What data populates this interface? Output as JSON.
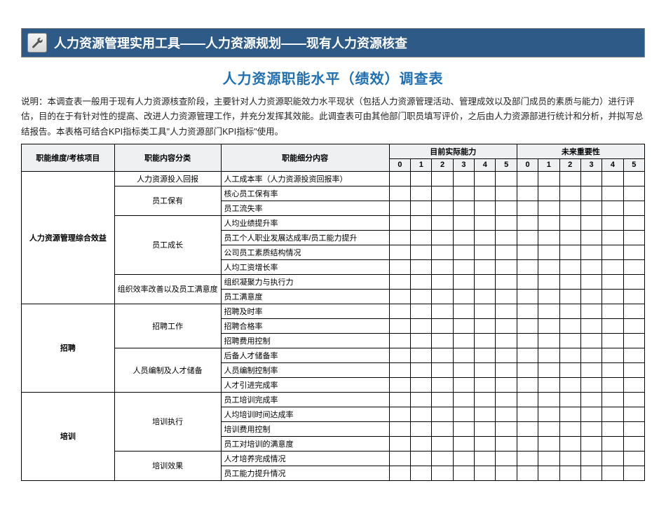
{
  "header": {
    "title": "人力资源管理实用工具——人力资源规划——现有人力资源核查",
    "bar_bg": "#2e5a87",
    "icon_name": "wrench-icon"
  },
  "sub_title": "人力资源职能水平（绩效）调查表",
  "sub_title_color": "#1f6fb0",
  "description": "说明：本调查表一般用于现有人力资源核查阶段，主要针对人力资源职能效力水平现状（包括人力资源管理活动、管理成效以及部门成员的素质与能力）进行评估，目的在于有针对性的提高、改进人力资源管理工作，并充分发挥其效能。此调查表可由其他部门职员填写评价，之后由人力资源部进行统计和分析，并拟写总结报告。本表格可结合KPI指标类工具\"人力资源部门KPI指标\"使用。",
  "table": {
    "header_bg": "#eef0f2",
    "columns": {
      "dimension": "职能维度/考核项目",
      "category": "职能内容分类",
      "detail": "职能细分内容",
      "current_group": "目前实际能力",
      "future_group": "未来重要性",
      "scale": [
        "0",
        "1",
        "2",
        "3",
        "4",
        "5"
      ]
    },
    "sections": [
      {
        "dimension": "人力资源管理综合效益",
        "groups": [
          {
            "category": "人力资源投入回报",
            "details": [
              "人工成本率（人力资源投资回报率）"
            ]
          },
          {
            "category": "员工保有",
            "details": [
              "核心员工保有率",
              "员工流失率"
            ]
          },
          {
            "category": "员工成长",
            "details": [
              "人均业绩提升率",
              "员工个人职业发展达成率/员工能力提升",
              "公司员工素质结构情况",
              "人均工资增长率"
            ]
          },
          {
            "category": "组织效率改善以及员工满意度",
            "details": [
              "组织凝聚力与执行力",
              "员工满意度"
            ]
          }
        ]
      },
      {
        "dimension": "招聘",
        "groups": [
          {
            "category": "招聘工作",
            "details": [
              "招聘及时率",
              "招聘合格率",
              "招聘费用控制"
            ]
          },
          {
            "category": "人员编制及人才储备",
            "details": [
              "后备人才储备率",
              "人员编制控制率",
              "人才引进完成率"
            ]
          }
        ]
      },
      {
        "dimension": "培训",
        "groups": [
          {
            "category": "培训执行",
            "details": [
              "员工培训完成率",
              "人均培训时间达成率",
              "培训费用控制",
              "员工对培训的满意度"
            ]
          },
          {
            "category": "培训效果",
            "details": [
              "人才培养完成情况",
              "员工能力提升情况"
            ]
          }
        ]
      }
    ]
  }
}
